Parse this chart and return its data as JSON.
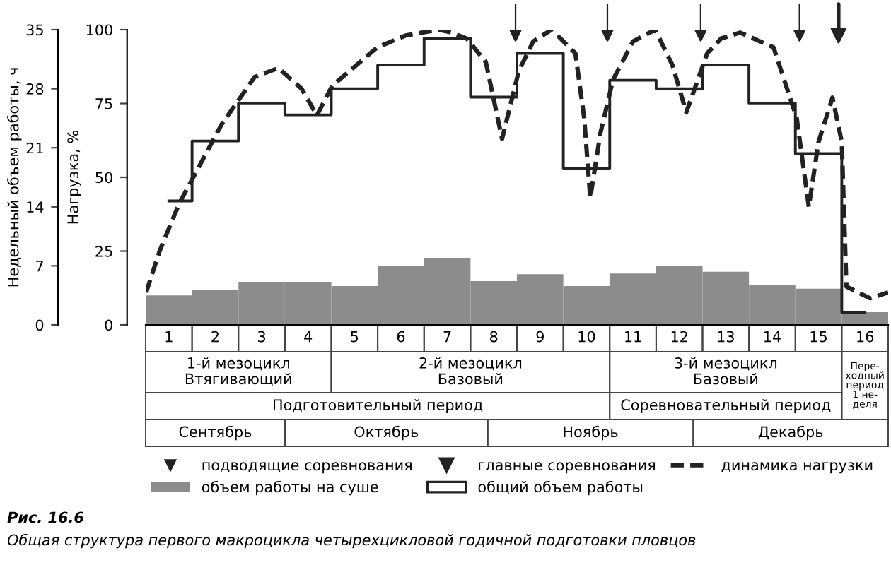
{
  "chart_data": {
    "type": "bar",
    "x": [
      1,
      2,
      3,
      4,
      5,
      6,
      7,
      8,
      9,
      10,
      11,
      12,
      13,
      14,
      15,
      16
    ],
    "xlim": [
      0.5,
      16.5
    ],
    "xticks": [
      1,
      2,
      3,
      4,
      5,
      6,
      7,
      8,
      9,
      10,
      11,
      12,
      13,
      14,
      15,
      16
    ],
    "ylim": [
      0,
      35
    ],
    "yticks": [
      0,
      7,
      14,
      21,
      28,
      35
    ],
    "ylabel": "Недельный объем работы, ч",
    "y2lim": [
      0,
      100
    ],
    "y2ticks": [
      0,
      25,
      50,
      75,
      100
    ],
    "y2label": "Нагрузка, %",
    "legend": "bottom",
    "grid": false,
    "series": [
      {
        "name": "объем работы на суше",
        "color": "#8c8c8c",
        "values": [
          3.5,
          4.1,
          5.1,
          5.1,
          4.6,
          7.0,
          7.9,
          5.2,
          6.0,
          4.6,
          6.1,
          7.0,
          6.3,
          4.7,
          4.3,
          1.5
        ]
      },
      {
        "name": "общий объем работы",
        "type": "step",
        "color": "#222222",
        "values": [
          14.7,
          21.8,
          26.3,
          24.9,
          28,
          30.8,
          34,
          27,
          32.2,
          18.5,
          29,
          28,
          30.8,
          26.3,
          20.3,
          1.5
        ]
      },
      {
        "name": "динамика нагрузки",
        "type": "line",
        "axis": "y2",
        "line_style": "dashed",
        "color": "#222222",
        "x": [
          0.51,
          0.8,
          1.22,
          2.14,
          2.85,
          3.36,
          3.86,
          4.19,
          4.52,
          5.49,
          6.1,
          6.81,
          7.1,
          7.42,
          7.83,
          8.18,
          8.54,
          8.85,
          9.25,
          9.76,
          9.95,
          10.08,
          10.3,
          10.57,
          11.0,
          11.48,
          11.85,
          12.15,
          12.6,
          12.9,
          13.31,
          14.03,
          14.53,
          14.79,
          15.0,
          15.3,
          15.5,
          15.6,
          16.11,
          16.5
        ],
        "values": [
          11,
          25,
          41,
          68,
          84,
          87,
          80,
          71,
          81,
          94,
          98,
          100,
          99,
          97,
          89,
          63,
          86,
          96,
          100,
          92,
          70,
          43,
          65,
          83,
          96,
          100,
          88,
          72,
          92,
          97,
          99,
          94,
          70,
          40,
          62,
          77,
          62,
          13,
          9,
          11
        ]
      },
      {
        "name": "подводящие соревнования",
        "type": "scatter",
        "marker": "triangle",
        "axis": "y2",
        "color": "#222222",
        "x": [
          8.47,
          10.45,
          12.46,
          14.59
        ],
        "values": [
          98,
          98,
          98,
          98
        ]
      },
      {
        "name": "главные соревнования",
        "type": "scatter",
        "marker": "triangle",
        "axis": "y2",
        "color": "#222222",
        "x": [
          15.43
        ],
        "values": [
          98
        ]
      }
    ],
    "annotations": [
      "1-й мезоцикл\nВтягивающий",
      "2-й мезоцикл\nБазовый",
      "3-й мезоцикл\nБазовый",
      "Пере-\nходный\nпериод\n1 не-\nделя",
      "Подготовительный период",
      "Соревновательный период",
      "Сентябрь",
      "Октябрь",
      "Ноябрь",
      "Декабрь",
      "Рис. 16.6",
      "Общая структура первого макроцикла четырехцикловой годичной подготовки пловцов"
    ]
  }
}
